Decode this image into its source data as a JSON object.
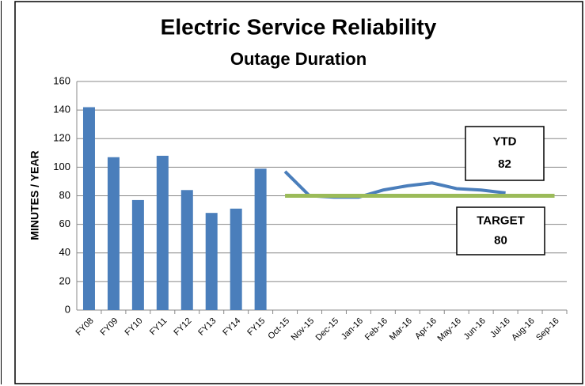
{
  "chart_data": {
    "type": "bar_line",
    "title": "Electric Service Reliability",
    "subtitle": "Outage Duration",
    "y_label": "MINUTES / YEAR",
    "categories": [
      "FY08",
      "FY09",
      "FY10",
      "FY11",
      "FY12",
      "FY13",
      "FY14",
      "FY15",
      "Oct-15",
      "Nov-15",
      "Dec-15",
      "Jan-16",
      "Feb-16",
      "Mar-16",
      "Apr-16",
      "May-16",
      "Jun-16",
      "Jul-16",
      "Aug-16",
      "Sep-16"
    ],
    "series": [
      {
        "type": "bar",
        "color": "#4a7ebb",
        "values": [
          142,
          107,
          77,
          108,
          84,
          68,
          71,
          99,
          null,
          null,
          null,
          null,
          null,
          null,
          null,
          null,
          null,
          null,
          null,
          null
        ]
      },
      {
        "type": "line",
        "color": "#4a7ebb",
        "values": [
          null,
          null,
          null,
          null,
          null,
          null,
          null,
          null,
          97,
          80,
          79,
          79,
          84,
          87,
          89,
          85,
          84,
          82,
          null,
          null
        ]
      },
      {
        "type": "line",
        "color": "#9bbb59",
        "values": [
          null,
          null,
          null,
          null,
          null,
          null,
          null,
          null,
          80,
          80,
          80,
          80,
          80,
          80,
          80,
          80,
          80,
          80,
          80,
          80
        ]
      }
    ],
    "ylim": [
      0,
      160
    ],
    "yticks": [
      0,
      20,
      40,
      60,
      80,
      100,
      120,
      140,
      160
    ],
    "grid": true,
    "annotations": [
      {
        "lines": [
          "YTD",
          "82"
        ]
      },
      {
        "lines": [
          "TARGET",
          "80"
        ]
      }
    ]
  }
}
